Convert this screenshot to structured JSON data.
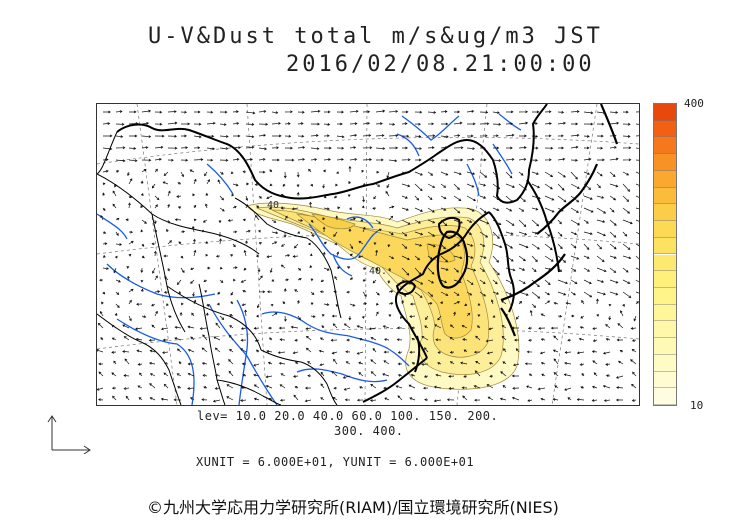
{
  "header": {
    "title_line1": "U-V&Dust total m/s&ug/m3 JST",
    "title_line2": "2016/02/08.21:00:00"
  },
  "colorbar": {
    "max_label": "400",
    "min_label": "10",
    "levels_top_to_bottom": [
      "#e8480c",
      "#f26014",
      "#f5781c",
      "#f89224",
      "#faa830",
      "#fbbc3c",
      "#fccd48",
      "#fdda55",
      "#fde262",
      "#fee970",
      "#fff07c",
      "#fff48a",
      "#fff699",
      "#fff8a8",
      "#fff9b6",
      "#fffbc4",
      "#fffcd2",
      "#fffde0"
    ]
  },
  "map": {
    "contour_labels": [
      "40.",
      "40."
    ],
    "colors": {
      "coast": "#000000",
      "river": "#1a5ce6",
      "graticule": "#777777",
      "dust_low": "#fff9c4",
      "dust_mid": "#fde47a",
      "dust_high": "#f8cf4a"
    }
  },
  "legend": {
    "levels_line1": "lev= 10.0 20.0 40.0 60.0 100. 150. 200.",
    "levels_line2": "300. 400.",
    "units_line": "XUNIT = 6.000E+01, YUNIT = 6.000E+01"
  },
  "footer": {
    "credit": "©九州大学応用力学研究所(RIAM)/国立環境研究所(NIES)"
  }
}
